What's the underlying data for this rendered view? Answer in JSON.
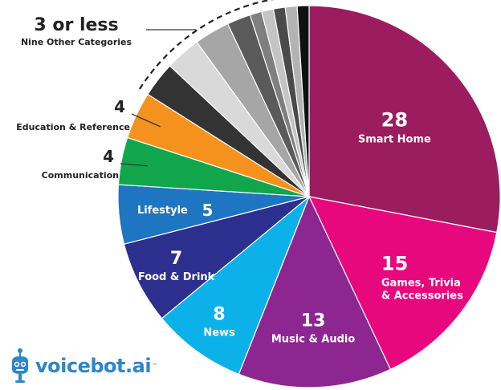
{
  "chart_data": {
    "type": "pie",
    "title": "",
    "start_angle_deg": 0,
    "direction": "clockwise",
    "slices": [
      {
        "label": "Smart Home",
        "value": 28,
        "value_label": "28",
        "color": "#9b1c5f"
      },
      {
        "label": "Games, Trivia & Accessories",
        "value": 15,
        "value_label": "15",
        "color": "#e8087e"
      },
      {
        "label": "Music & Audio",
        "value": 13,
        "value_label": "13",
        "color": "#8e2691"
      },
      {
        "label": "News",
        "value": 8,
        "value_label": "8",
        "color": "#0cb1ea"
      },
      {
        "label": "Food & Drink",
        "value": 7,
        "value_label": "7",
        "color": "#2d2f8f"
      },
      {
        "label": "Lifestyle",
        "value": 5,
        "value_label": "5",
        "color": "#1e75c2"
      },
      {
        "label": "Communication",
        "value": 4,
        "value_label": "4",
        "color": "#12a64c"
      },
      {
        "label": "Education & Reference",
        "value": 4,
        "value_label": "4",
        "color": "#f5921e"
      },
      {
        "label": "",
        "value": 3,
        "value_label": "",
        "color": "#333333"
      },
      {
        "label": "",
        "value": 3,
        "value_label": "",
        "color": "#d9d9d9"
      },
      {
        "label": "",
        "value": 3,
        "value_label": "",
        "color": "#a6a6a6"
      },
      {
        "label": "",
        "value": 2,
        "value_label": "",
        "color": "#5a5a5a"
      },
      {
        "label": "",
        "value": 1,
        "value_label": "",
        "color": "#7f7f7f"
      },
      {
        "label": "",
        "value": 1,
        "value_label": "",
        "color": "#c4c4c4"
      },
      {
        "label": "",
        "value": 1,
        "value_label": "",
        "color": "#4a4a4a"
      },
      {
        "label": "",
        "value": 1,
        "value_label": "",
        "color": "#b3b3b3"
      },
      {
        "label": "",
        "value": 1,
        "value_label": "",
        "color": "#111111"
      }
    ],
    "group_annotation": {
      "value_text": "3 or less",
      "label": "Nine Other Categories"
    }
  },
  "brand": {
    "name": "voicebot.ai",
    "trademark": "™",
    "color": "#2f86c9"
  }
}
